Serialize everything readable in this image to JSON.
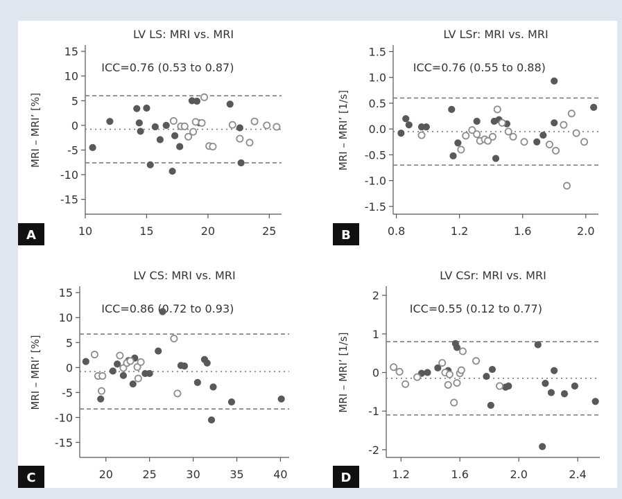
{
  "chart_data": [
    {
      "panel": "A",
      "type": "scatter",
      "title": "LV LS: MRI vs. MRI",
      "annotation": "ICC=0.76 (0.53 to 0.87)",
      "xlabel": "",
      "ylabel": "MRI – MRI’ [%]",
      "xlim": [
        10,
        26
      ],
      "ylim": [
        -18,
        16
      ],
      "x_ticks": [
        10,
        15,
        20,
        25
      ],
      "x_tick_labels": [
        "10",
        "15",
        "20",
        "25"
      ],
      "y_ticks": [
        15,
        10,
        5,
        0,
        -5,
        -10,
        -15
      ],
      "y_tick_labels": [
        "15",
        "10",
        "5",
        "0",
        "-5",
        "-10",
        "-15"
      ],
      "ref_lines": {
        "upper": 6.0,
        "mean": -0.8,
        "lower": -7.6
      },
      "grid": false,
      "series": [
        {
          "style": "filled",
          "points": [
            [
              10.6,
              -4.5
            ],
            [
              12.0,
              0.8
            ],
            [
              14.2,
              3.4
            ],
            [
              14.4,
              0.5
            ],
            [
              14.5,
              -1.2
            ],
            [
              15.0,
              3.5
            ],
            [
              15.3,
              -8.0
            ],
            [
              15.7,
              -0.3
            ],
            [
              16.1,
              -2.9
            ],
            [
              16.6,
              0.0
            ],
            [
              17.1,
              -9.3
            ],
            [
              17.3,
              -2.1
            ],
            [
              17.7,
              -4.3
            ],
            [
              18.7,
              5.0
            ],
            [
              19.1,
              4.9
            ],
            [
              19.3,
              0.5
            ],
            [
              21.8,
              4.3
            ],
            [
              22.6,
              -0.5
            ],
            [
              22.7,
              -7.6
            ]
          ]
        },
        {
          "style": "open",
          "points": [
            [
              17.2,
              0.9
            ],
            [
              17.8,
              -0.2
            ],
            [
              18.1,
              -0.2
            ],
            [
              18.4,
              -2.3
            ],
            [
              18.8,
              -1.3
            ],
            [
              19.0,
              0.7
            ],
            [
              19.5,
              0.5
            ],
            [
              19.7,
              5.7
            ],
            [
              20.1,
              -4.2
            ],
            [
              20.4,
              -4.3
            ],
            [
              22.0,
              0.1
            ],
            [
              22.6,
              -2.7
            ],
            [
              23.4,
              -3.5
            ],
            [
              23.8,
              0.8
            ],
            [
              24.8,
              0.0
            ],
            [
              25.6,
              -0.3
            ]
          ]
        }
      ]
    },
    {
      "panel": "B",
      "type": "scatter",
      "title": "LV LSr: MRI vs. MRI",
      "annotation": "ICC=0.76 (0.55 to 0.88)",
      "xlabel": "",
      "ylabel": "MRI – MRI’ [1/s]",
      "xlim": [
        0.78,
        2.08
      ],
      "ylim": [
        -1.65,
        1.6
      ],
      "x_ticks": [
        0.8,
        1.2,
        1.6,
        2.0
      ],
      "x_tick_labels": [
        "0.8",
        "1.2",
        "1.6",
        "2.0"
      ],
      "y_ticks": [
        1.5,
        1.0,
        0.5,
        0.0,
        -0.5,
        -1.0,
        -1.5
      ],
      "y_tick_labels": [
        "1.5",
        "1.0",
        "0.5",
        "0.0",
        "-0.5",
        "-1.0",
        "-1.5"
      ],
      "ref_lines": {
        "upper": 0.6,
        "mean": -0.05,
        "lower": -0.7
      },
      "grid": false,
      "series": [
        {
          "style": "filled",
          "points": [
            [
              0.83,
              -0.08
            ],
            [
              0.86,
              0.2
            ],
            [
              0.88,
              0.08
            ],
            [
              0.96,
              0.04
            ],
            [
              0.99,
              0.04
            ],
            [
              1.15,
              0.38
            ],
            [
              1.16,
              -0.52
            ],
            [
              1.19,
              -0.27
            ],
            [
              1.31,
              0.15
            ],
            [
              1.42,
              0.15
            ],
            [
              1.43,
              -0.57
            ],
            [
              1.45,
              0.18
            ],
            [
              1.5,
              0.1
            ],
            [
              1.69,
              -0.25
            ],
            [
              1.73,
              -0.12
            ],
            [
              1.8,
              0.12
            ],
            [
              1.8,
              0.93
            ],
            [
              2.05,
              0.42
            ]
          ]
        },
        {
          "style": "open",
          "points": [
            [
              0.96,
              -0.12
            ],
            [
              1.21,
              -0.4
            ],
            [
              1.24,
              -0.13
            ],
            [
              1.28,
              -0.02
            ],
            [
              1.31,
              -0.1
            ],
            [
              1.33,
              -0.23
            ],
            [
              1.36,
              -0.2
            ],
            [
              1.38,
              -0.23
            ],
            [
              1.41,
              -0.15
            ],
            [
              1.44,
              0.38
            ],
            [
              1.47,
              0.12
            ],
            [
              1.51,
              -0.05
            ],
            [
              1.54,
              -0.15
            ],
            [
              1.61,
              -0.25
            ],
            [
              1.77,
              -0.3
            ],
            [
              1.81,
              -0.42
            ],
            [
              1.86,
              0.08
            ],
            [
              1.88,
              -1.1
            ],
            [
              1.91,
              0.3
            ],
            [
              1.94,
              -0.08
            ],
            [
              1.99,
              -0.25
            ]
          ]
        }
      ]
    },
    {
      "panel": "C",
      "type": "scatter",
      "title": "LV CS: MRI vs. MRI",
      "annotation": "ICC=0.86 (0.72 to 0.93)",
      "xlabel": "",
      "ylabel": "MRI – MRI’ [%]",
      "xlim": [
        17,
        41
      ],
      "ylim": [
        -18,
        16
      ],
      "x_ticks": [
        20,
        25,
        30,
        35,
        40
      ],
      "x_tick_labels": [
        "20",
        "25",
        "30",
        "35",
        "40"
      ],
      "y_ticks": [
        15,
        10,
        5,
        0,
        -5,
        -10,
        -15
      ],
      "y_tick_labels": [
        "15",
        "10",
        "5",
        "0",
        "-5",
        "-10",
        "-15"
      ],
      "ref_lines": {
        "upper": 6.7,
        "mean": -0.8,
        "lower": -8.3
      },
      "grid": false,
      "series": [
        {
          "style": "filled",
          "points": [
            [
              17.7,
              1.2
            ],
            [
              19.4,
              -6.3
            ],
            [
              20.8,
              -0.7
            ],
            [
              21.3,
              0.7
            ],
            [
              22.0,
              -1.6
            ],
            [
              22.6,
              1.4
            ],
            [
              23.1,
              -3.3
            ],
            [
              23.3,
              1.9
            ],
            [
              24.5,
              -1.2
            ],
            [
              25.0,
              -1.2
            ],
            [
              26.0,
              3.3
            ],
            [
              26.5,
              11.2
            ],
            [
              28.6,
              0.4
            ],
            [
              29.0,
              0.3
            ],
            [
              30.5,
              -3.0
            ],
            [
              31.3,
              1.6
            ],
            [
              31.6,
              0.9
            ],
            [
              32.1,
              -10.5
            ],
            [
              32.3,
              -3.9
            ],
            [
              34.4,
              -6.9
            ],
            [
              40.1,
              -6.3
            ]
          ]
        },
        {
          "style": "open",
          "points": [
            [
              18.7,
              2.6
            ],
            [
              19.1,
              -1.7
            ],
            [
              19.5,
              -4.7
            ],
            [
              19.6,
              -1.7
            ],
            [
              21.6,
              2.4
            ],
            [
              22.0,
              -0.1
            ],
            [
              22.4,
              0.9
            ],
            [
              22.8,
              1.3
            ],
            [
              23.6,
              0.1
            ],
            [
              23.7,
              -2.2
            ],
            [
              24.0,
              1.1
            ],
            [
              27.8,
              5.8
            ],
            [
              28.2,
              -5.2
            ]
          ]
        }
      ]
    },
    {
      "panel": "D",
      "type": "scatter",
      "title": "LV CSr: MRI vs. MRI",
      "annotation": "ICC=0.55 (0.12 to 0.77)",
      "xlabel": "",
      "ylabel": "MRI – MRI’ [1/s]",
      "xlim": [
        1.1,
        2.55
      ],
      "ylim": [
        -2.2,
        2.2
      ],
      "x_ticks": [
        1.2,
        1.6,
        2.0,
        2.4
      ],
      "x_tick_labels": [
        "1.2",
        "1.6",
        "2.0",
        "2.4"
      ],
      "y_ticks": [
        2,
        1,
        0,
        -1,
        -2
      ],
      "y_tick_labels": [
        "2",
        "1",
        "0",
        "-1",
        "-2"
      ],
      "ref_lines": {
        "upper": 0.8,
        "mean": -0.15,
        "lower": -1.1
      },
      "grid": false,
      "series": [
        {
          "style": "filled",
          "points": [
            [
              1.34,
              -0.02
            ],
            [
              1.38,
              0.0
            ],
            [
              1.45,
              0.12
            ],
            [
              1.52,
              0.05
            ],
            [
              1.57,
              0.75
            ],
            [
              1.58,
              0.65
            ],
            [
              1.78,
              -0.1
            ],
            [
              1.81,
              -0.85
            ],
            [
              1.82,
              0.08
            ],
            [
              1.91,
              -0.38
            ],
            [
              1.93,
              -0.35
            ],
            [
              2.13,
              0.72
            ],
            [
              2.16,
              -1.92
            ],
            [
              2.18,
              -0.28
            ],
            [
              2.22,
              -0.52
            ],
            [
              2.24,
              0.05
            ],
            [
              2.31,
              -0.55
            ],
            [
              2.38,
              -0.35
            ],
            [
              2.52,
              -0.75
            ]
          ]
        },
        {
          "style": "open",
          "points": [
            [
              1.15,
              0.14
            ],
            [
              1.19,
              0.02
            ],
            [
              1.23,
              -0.3
            ],
            [
              1.31,
              -0.12
            ],
            [
              1.48,
              0.25
            ],
            [
              1.5,
              0.0
            ],
            [
              1.52,
              -0.32
            ],
            [
              1.53,
              -0.05
            ],
            [
              1.56,
              -0.78
            ],
            [
              1.58,
              -0.27
            ],
            [
              1.6,
              -0.02
            ],
            [
              1.61,
              0.06
            ],
            [
              1.62,
              0.55
            ],
            [
              1.71,
              0.3
            ],
            [
              1.87,
              -0.35
            ]
          ]
        }
      ]
    }
  ],
  "colors": {
    "filled_marker": "#595959",
    "open_marker": "#8c8c8c",
    "ref_line": "#7a7a7a",
    "axis": "#555555",
    "panel_label_bg": "#111111",
    "panel_label_text": "#ffffff",
    "page_background": "#dfe6ef"
  }
}
